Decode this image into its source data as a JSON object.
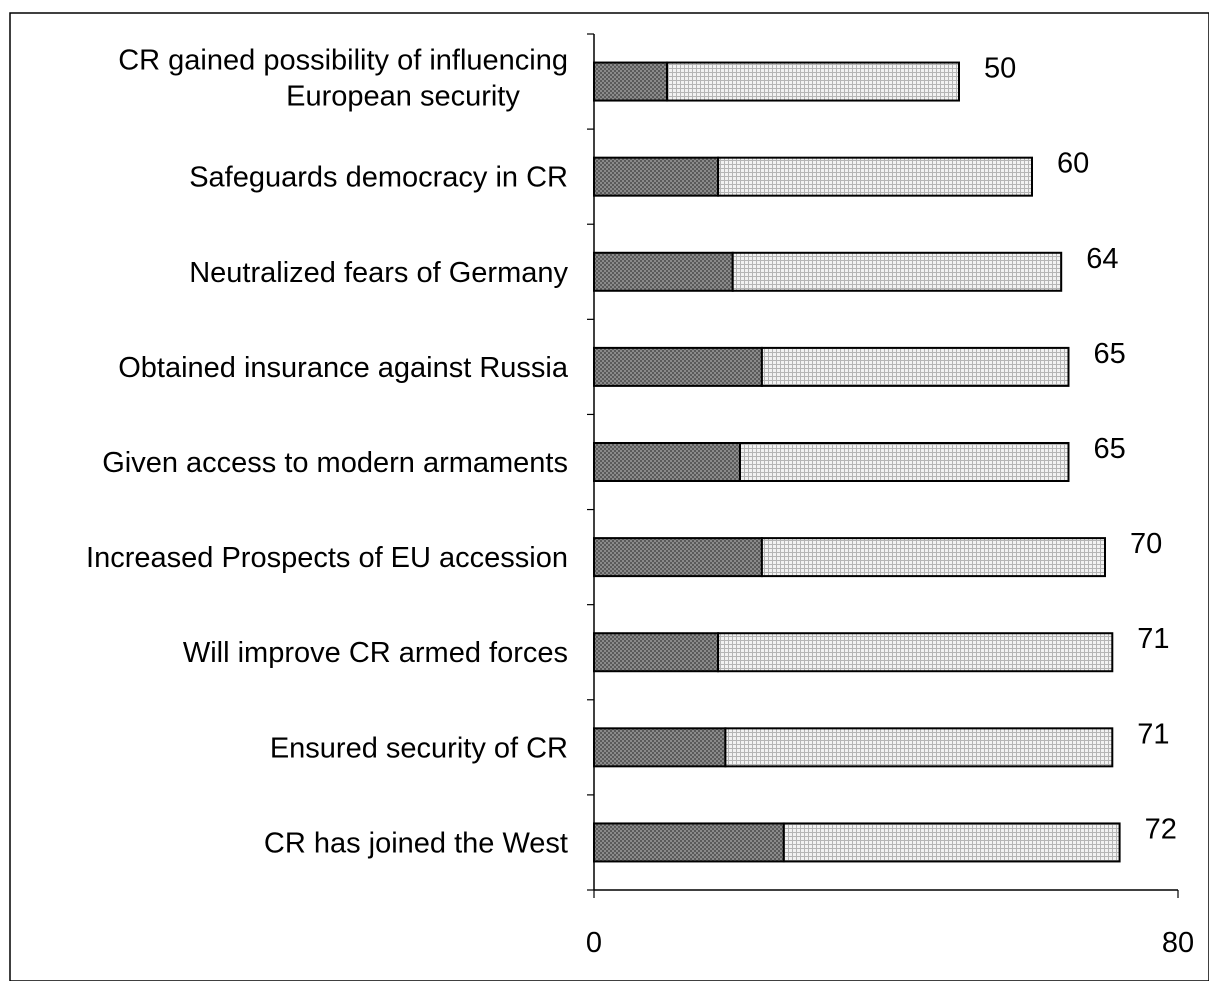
{
  "chart_data": {
    "type": "bar",
    "orientation": "horizontal",
    "stacked": true,
    "categories": [
      "CR gained possibility of influencing European security",
      "Safeguards democracy in CR",
      "Neutralized fears of Germany",
      "Obtained insurance against Russia",
      "Given access to modern armaments",
      "Increased Prospects of EU accession",
      "Will improve CR armed forces",
      "Ensured security of CR",
      "CR has joined the West"
    ],
    "category_lines": [
      [
        "CR gained possibility of influencing",
        "European security"
      ],
      [
        "Safeguards democracy in CR"
      ],
      [
        "Neutralized fears of Germany"
      ],
      [
        "Obtained insurance against Russia"
      ],
      [
        "Given access to modern armaments"
      ],
      [
        "Increased Prospects of EU accession"
      ],
      [
        "Will improve CR armed forces"
      ],
      [
        "Ensured security of CR"
      ],
      [
        "CR has joined the West"
      ]
    ],
    "series": [
      {
        "values": [
          10,
          17,
          19,
          23,
          20,
          23,
          17,
          18,
          26
        ]
      },
      {
        "values": [
          40,
          43,
          45,
          42,
          45,
          47,
          54,
          53,
          46
        ]
      }
    ],
    "totals": [
      50,
      60,
      64,
      65,
      65,
      70,
      71,
      71,
      72
    ],
    "total_labels": [
      "50",
      "60",
      "64",
      "65",
      "65",
      "70",
      "71",
      "71",
      "72"
    ],
    "xlim": [
      0,
      80
    ],
    "xtick_labels": [
      "0",
      "80"
    ],
    "title": "",
    "xlabel": "",
    "ylabel": "",
    "grid": false,
    "legend": "none",
    "colors": {
      "series_dark": "#7a7a7a",
      "series_light": "#e6e6e6",
      "border": "#000000"
    }
  }
}
